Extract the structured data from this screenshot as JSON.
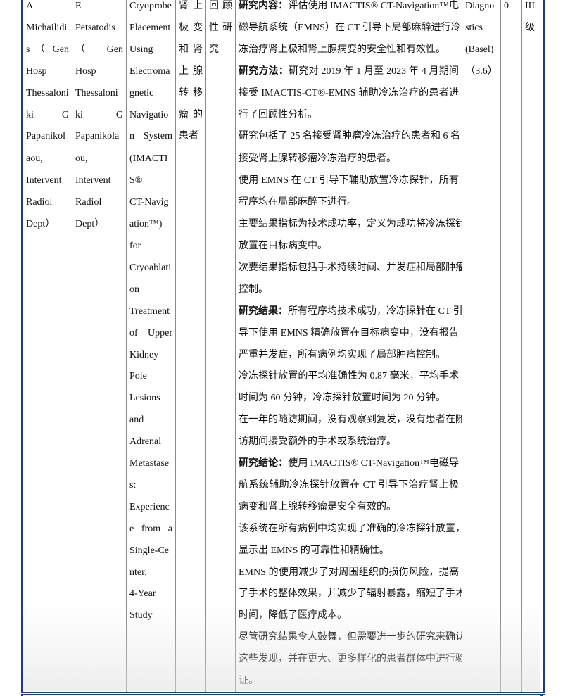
{
  "colors": {
    "border_outer": "#1f3b84",
    "border_inner": "#8a8a8a"
  },
  "rows": [
    {
      "cells": [
        [
          {
            "lines": [
              "A",
              "Michailidi",
              "s （ Gen",
              "Hosp",
              "Thessaloni",
              "ki G",
              "Papanikol"
            ],
            "cont": true
          }
        ],
        [
          {
            "lines": [
              "E",
              "Petsatodis",
              "（ Gen",
              "Hosp",
              "Thessaloni",
              "ki G",
              "Papanikola"
            ],
            "cont": true
          }
        ],
        [
          {
            "lines": [
              "Cryoprobe",
              "Placement",
              "Using",
              "Electroma",
              "gnetic",
              "Navigatio",
              "n System"
            ],
            "cont": true
          }
        ],
        [
          {
            "lines": [
              "肾上",
              "极变",
              "和肾",
              "上腺",
              "转移",
              "瘤的",
              "患者"
            ]
          }
        ],
        [
          {
            "lines": [
              "回顾",
              "性研",
              "究"
            ]
          }
        ],
        [
          {
            "label": "研究内容：",
            "lines": [
              "评估使用 IMACTIS® CT-Navigation™电",
              "磁导航系统（EMNS）在 CT 引导下局部麻醉进行冷",
              "冻治疗肾上极和肾上腺病变的安全性和有效性。"
            ]
          },
          {
            "label": "研究方法：",
            "lines": [
              "研究对 2019 年 1 月至 2023 年 4 月期间",
              "接受 IMACTIS-CT®-EMNS 辅助冷冻治疗的患者进",
              "行了回顾性分析。"
            ]
          },
          {
            "lines": [
              "研究包括了 25 名接受肾肿瘤冷冻治疗的患者和 6 名"
            ],
            "cont": true
          }
        ],
        [
          {
            "lines": [
              "Diagno",
              "stics",
              "(Basel)",
              "（3.6）"
            ]
          }
        ],
        [
          {
            "lines": [
              "0"
            ]
          }
        ],
        [
          {
            "lines": [
              "III",
              "级"
            ]
          }
        ]
      ]
    },
    {
      "cells": [
        [
          {
            "lines": [
              "aou,",
              "Intervent",
              "Radiol",
              "Dept）"
            ]
          }
        ],
        [
          {
            "lines": [
              "ou,",
              "Intervent",
              "Radiol",
              "Dept）"
            ]
          }
        ],
        [
          {
            "lines": [
              "(IMACTI",
              "S®",
              "CT-Navig",
              "ation™)",
              "for",
              "Cryoablati",
              "on",
              "Treatment",
              "of Upper",
              "Kidney",
              "Pole",
              "Lesions",
              "and",
              "Adrenal",
              "Metastase",
              "s:",
              "Experienc",
              "e from a",
              "Single-Ce",
              "nter,",
              "4-Year",
              "Study"
            ]
          }
        ],
        [],
        [],
        [
          {
            "lines": [
              "接受肾上腺转移瘤冷冻治疗的患者。"
            ]
          },
          {
            "lines": [
              "使用 EMNS 在 CT 引导下辅助放置冷冻探针，所有",
              "程序均在局部麻醉下进行。"
            ]
          },
          {
            "lines": [
              "主要结果指标为技术成功率，定义为成功将冷冻探针",
              "放置在目标病变中。"
            ]
          },
          {
            "lines": [
              "次要结果指标包括手术持续时间、并发症和局部肿瘤",
              "控制。"
            ]
          },
          {
            "label": "研究结果：",
            "lines": [
              "所有程序均技术成功，冷冻探针在 CT 引",
              "导下使用 EMNS 精确放置在目标病变中，没有报告",
              "严重并发症，所有病例均实现了局部肿瘤控制。"
            ]
          },
          {
            "lines": [
              "冷冻探针放置的平均准确性为 0.87 毫米，平均手术",
              "时间为 60 分钟，冷冻探针放置时间为 20 分钟。"
            ]
          },
          {
            "lines": [
              "在一年的随访期间，没有观察到复发，没有患者在随",
              "访期间接受额外的手术或系统治疗。"
            ]
          },
          {
            "label": "研究结论：",
            "lines": [
              "使用 IMACTIS® CT-Navigation™电磁导",
              "航系统辅助冷冻探针放置在 CT 引导下治疗肾上极",
              "病变和肾上腺转移瘤是安全有效的。"
            ]
          },
          {
            "lines": [
              "该系统在所有病例中均实现了准确的冷冻探针放置，",
              "显示出 EMNS 的可靠性和精确性。"
            ]
          },
          {
            "lines": [
              "EMNS 的使用减少了对周围组织的损伤风险，提高",
              "了手术的整体效果，并减少了辐射暴露，缩短了手术",
              "时间，降低了医疗成本。"
            ]
          },
          {
            "lines": [
              "尽管研究结果令人鼓舞，但需要进一步的研究来确认",
              "这些发现，并在更大、更多样化的患者群体中进行验",
              "证。"
            ]
          }
        ],
        [],
        [],
        []
      ]
    }
  ]
}
